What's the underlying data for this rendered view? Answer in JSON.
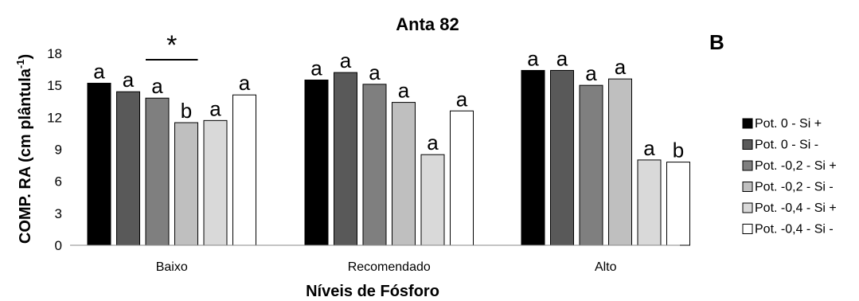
{
  "chart_data": {
    "type": "bar",
    "title": "Anta 82",
    "panel_label": "B",
    "xlabel": "Níveis de Fósforo",
    "ylabel": "COMP. RA (cm plântula",
    "ylabel_superscript": "-1",
    "ylabel_close": ")",
    "ylim": [
      0,
      18
    ],
    "yticks": [
      "0",
      "3",
      "6",
      "9",
      "12",
      "15",
      "18"
    ],
    "grid": false,
    "legend_position": "right",
    "categories": [
      "Baixo",
      "Recomendado",
      "Alto"
    ],
    "series": [
      {
        "name": "Pot. 0 - Si +",
        "color": "#000000",
        "values": [
          15.2,
          15.5,
          16.4
        ],
        "labels": [
          "a",
          "a",
          "a"
        ]
      },
      {
        "name": "Pot. 0 - Si -",
        "color": "#595959",
        "values": [
          14.4,
          16.2,
          16.4
        ],
        "labels": [
          "a",
          "a",
          "a"
        ]
      },
      {
        "name": "Pot. -0,2 - Si +",
        "color": "#7f7f7f",
        "values": [
          13.8,
          15.1,
          15.0
        ],
        "labels": [
          "a",
          "a",
          "a"
        ]
      },
      {
        "name": "Pot. -0,2 - Si -",
        "color": "#bfbfbf",
        "values": [
          11.5,
          13.4,
          15.6
        ],
        "labels": [
          "b",
          "a",
          "a"
        ]
      },
      {
        "name": "Pot. -0,4 - Si +",
        "color": "#d9d9d9",
        "values": [
          11.7,
          8.5,
          8.0
        ],
        "labels": [
          "a",
          "a",
          "a"
        ]
      },
      {
        "name": "Pot. -0,4 - Si -",
        "color": "#ffffff",
        "values": [
          14.1,
          12.6,
          7.8
        ],
        "labels": [
          "a",
          "a",
          "b"
        ]
      }
    ],
    "annotation": {
      "text": "*",
      "category": "Baixo",
      "series_span": [
        2,
        3
      ]
    }
  }
}
